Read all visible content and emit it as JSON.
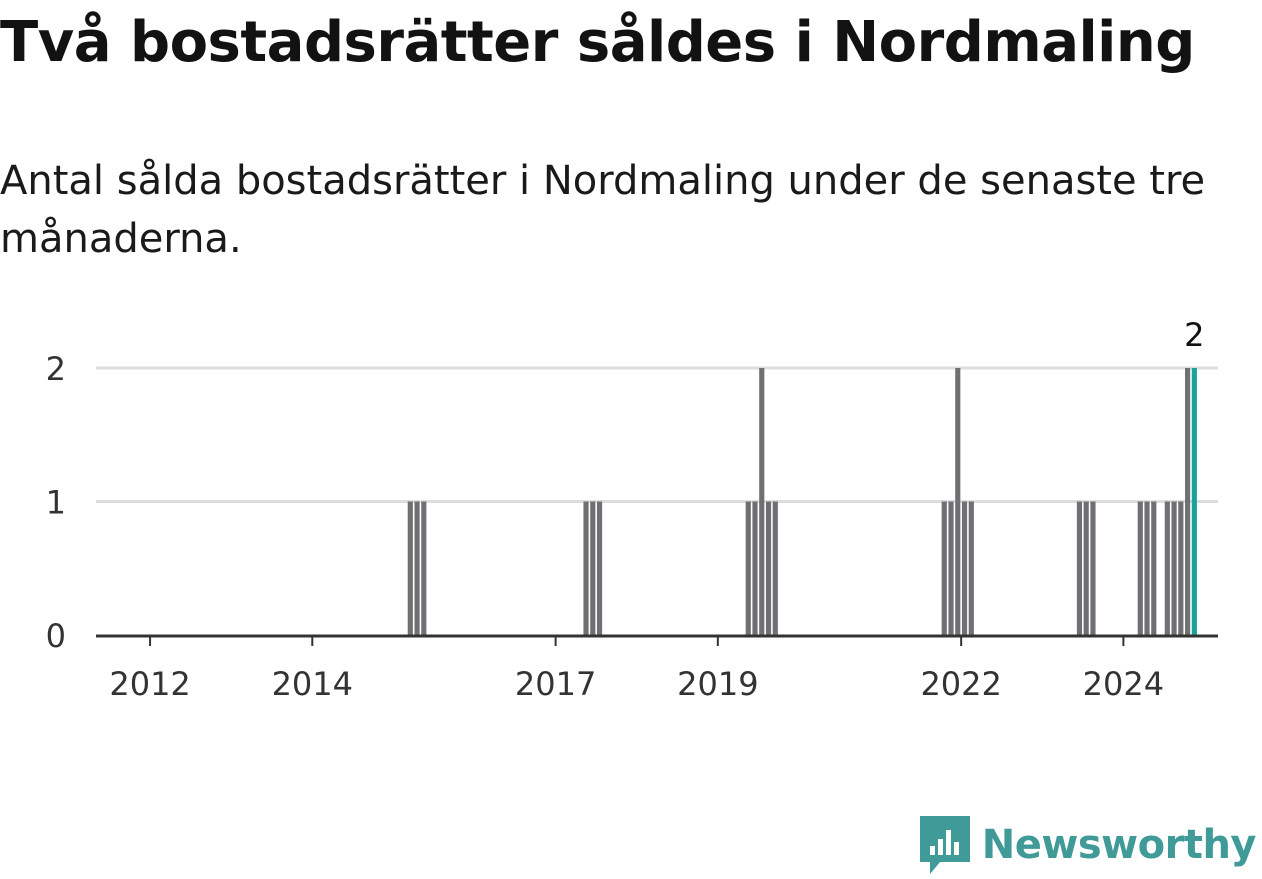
{
  "header": {
    "title": "Två bostadsrätter såldes i Nordmaling",
    "subtitle": "Antal sålda bostadsrätter i Nordmaling under de senaste tre månaderna."
  },
  "brand": {
    "name": "Newsworthy",
    "icon": "newsworthy-logo-icon",
    "color": "#3f9a98"
  },
  "chart_data": {
    "type": "bar",
    "title": "Två bostadsrätter såldes i Nordmaling",
    "subtitle": "Antal sålda bostadsrätter i Nordmaling under de senaste tre månaderna.",
    "xlabel": "",
    "ylabel": "",
    "frequency": "monthly",
    "x_range": [
      "2011-05",
      "2025-02"
    ],
    "ylim": [
      0,
      2
    ],
    "y_ticks": [
      0,
      1,
      2
    ],
    "x_ticks": [
      {
        "label": "2012",
        "date": "2012-01"
      },
      {
        "label": "2014",
        "date": "2014-01"
      },
      {
        "label": "2017",
        "date": "2017-01"
      },
      {
        "label": "2019",
        "date": "2019-01"
      },
      {
        "label": "2022",
        "date": "2022-01"
      },
      {
        "label": "2024",
        "date": "2024-01"
      }
    ],
    "grid": true,
    "bar_color": "#707074",
    "highlight_color": "#1aa39a",
    "gridline_color": "#dddddd",
    "axis_color": "#333333",
    "nonzero_values": [
      {
        "date": "2015-03",
        "value": 1
      },
      {
        "date": "2015-04",
        "value": 1
      },
      {
        "date": "2015-05",
        "value": 1
      },
      {
        "date": "2017-05",
        "value": 1
      },
      {
        "date": "2017-06",
        "value": 1
      },
      {
        "date": "2017-07",
        "value": 1
      },
      {
        "date": "2019-05",
        "value": 1
      },
      {
        "date": "2019-06",
        "value": 1
      },
      {
        "date": "2019-07",
        "value": 2
      },
      {
        "date": "2019-08",
        "value": 1
      },
      {
        "date": "2019-09",
        "value": 1
      },
      {
        "date": "2021-10",
        "value": 1
      },
      {
        "date": "2021-11",
        "value": 1
      },
      {
        "date": "2021-12",
        "value": 2
      },
      {
        "date": "2022-01",
        "value": 1
      },
      {
        "date": "2022-02",
        "value": 1
      },
      {
        "date": "2023-06",
        "value": 1
      },
      {
        "date": "2023-07",
        "value": 1
      },
      {
        "date": "2023-08",
        "value": 1
      },
      {
        "date": "2024-03",
        "value": 1
      },
      {
        "date": "2024-04",
        "value": 1
      },
      {
        "date": "2024-05",
        "value": 1
      },
      {
        "date": "2024-07",
        "value": 1
      },
      {
        "date": "2024-08",
        "value": 1
      },
      {
        "date": "2024-09",
        "value": 1
      },
      {
        "date": "2024-10",
        "value": 2
      },
      {
        "date": "2024-11",
        "value": 2,
        "highlight": true
      }
    ],
    "annotations": [
      {
        "date": "2024-11",
        "text": "2"
      }
    ]
  }
}
